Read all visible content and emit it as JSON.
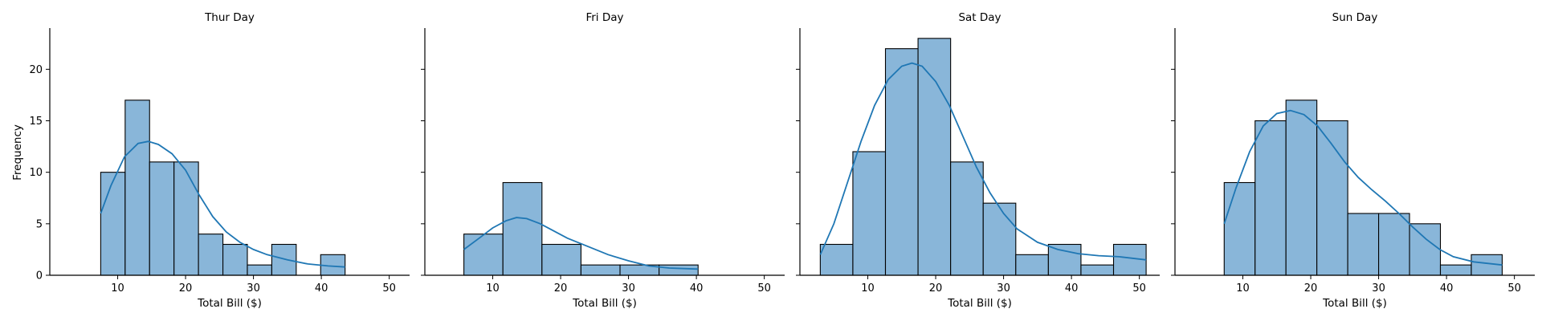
{
  "chart_data": {
    "type": "histogram",
    "ylabel": "Frequency",
    "xlim": [
      0,
      53
    ],
    "ylim": [
      0,
      24
    ],
    "yticks": [
      0,
      5,
      10,
      15,
      20
    ],
    "xticks": [
      10,
      20,
      30,
      40,
      50
    ],
    "grid": false,
    "bar_color": "#89b6d9",
    "line_color": "#1f77b4",
    "panels": [
      {
        "title": "Thur Day",
        "xlabel": "Total Bill ($)",
        "bin_edges": [
          7.5,
          11.1,
          14.7,
          18.3,
          21.9,
          25.5,
          29.1,
          32.7,
          36.3,
          39.9,
          43.5
        ],
        "counts": [
          10,
          17,
          11,
          11,
          4,
          3,
          1,
          3,
          0,
          2
        ],
        "kde": [
          [
            7.5,
            6
          ],
          [
            9,
            8.7
          ],
          [
            11,
            11.5
          ],
          [
            13,
            12.8
          ],
          [
            14.5,
            13.0
          ],
          [
            16,
            12.7
          ],
          [
            18,
            11.8
          ],
          [
            20,
            10.2
          ],
          [
            22,
            7.8
          ],
          [
            24,
            5.7
          ],
          [
            26,
            4.2
          ],
          [
            28,
            3.2
          ],
          [
            30,
            2.5
          ],
          [
            32,
            2.0
          ],
          [
            35,
            1.5
          ],
          [
            38,
            1.1
          ],
          [
            41,
            0.9
          ],
          [
            43.5,
            0.8
          ]
        ]
      },
      {
        "title": "Fri Day",
        "xlabel": "Total Bill ($)",
        "bin_edges": [
          5.75,
          11.5,
          17.25,
          23.0,
          28.75,
          34.5,
          40.25
        ],
        "counts": [
          4,
          9,
          3,
          1,
          1,
          1
        ],
        "kde": [
          [
            5.75,
            2.5
          ],
          [
            8,
            3.6
          ],
          [
            10,
            4.6
          ],
          [
            12,
            5.3
          ],
          [
            13.5,
            5.6
          ],
          [
            15,
            5.5
          ],
          [
            17,
            5.0
          ],
          [
            19,
            4.3
          ],
          [
            21,
            3.6
          ],
          [
            24,
            2.8
          ],
          [
            27,
            2.0
          ],
          [
            30,
            1.4
          ],
          [
            33,
            0.9
          ],
          [
            36,
            0.7
          ],
          [
            40.25,
            0.6
          ]
        ]
      },
      {
        "title": "Sat Day",
        "xlabel": "Total Bill ($)",
        "bin_edges": [
          3.0,
          7.8,
          12.6,
          17.4,
          22.2,
          27.0,
          31.8,
          36.6,
          41.4,
          46.2,
          51.0
        ],
        "counts": [
          3,
          12,
          22,
          23,
          11,
          7,
          2,
          3,
          1,
          3
        ],
        "kde": [
          [
            3.0,
            2.0
          ],
          [
            5,
            5.0
          ],
          [
            7,
            9.0
          ],
          [
            9,
            13.0
          ],
          [
            11,
            16.5
          ],
          [
            13,
            19.0
          ],
          [
            15,
            20.3
          ],
          [
            16.5,
            20.6
          ],
          [
            18,
            20.3
          ],
          [
            20,
            18.8
          ],
          [
            22,
            16.5
          ],
          [
            24,
            13.5
          ],
          [
            26,
            10.5
          ],
          [
            28,
            8.0
          ],
          [
            30,
            6.0
          ],
          [
            32,
            4.5
          ],
          [
            35,
            3.2
          ],
          [
            38,
            2.5
          ],
          [
            41,
            2.1
          ],
          [
            44,
            1.9
          ],
          [
            47,
            1.8
          ],
          [
            51,
            1.5
          ]
        ]
      },
      {
        "title": "Sun Day",
        "xlabel": "Total Bill ($)",
        "bin_edges": [
          7.25,
          11.8,
          16.35,
          20.9,
          25.45,
          30.0,
          34.55,
          39.1,
          43.65,
          48.2
        ],
        "counts": [
          9,
          15,
          17,
          15,
          6,
          6,
          5,
          1,
          2
        ],
        "kde": [
          [
            7.25,
            5.0
          ],
          [
            9,
            8.5
          ],
          [
            11,
            12.0
          ],
          [
            13,
            14.5
          ],
          [
            15,
            15.7
          ],
          [
            17,
            16.0
          ],
          [
            19,
            15.6
          ],
          [
            21,
            14.5
          ],
          [
            23,
            12.8
          ],
          [
            25,
            11.0
          ],
          [
            27,
            9.5
          ],
          [
            29,
            8.3
          ],
          [
            31,
            7.2
          ],
          [
            33,
            6.0
          ],
          [
            35,
            4.7
          ],
          [
            37,
            3.5
          ],
          [
            39,
            2.5
          ],
          [
            41,
            1.8
          ],
          [
            44,
            1.3
          ],
          [
            48.2,
            1.0
          ]
        ]
      }
    ]
  }
}
